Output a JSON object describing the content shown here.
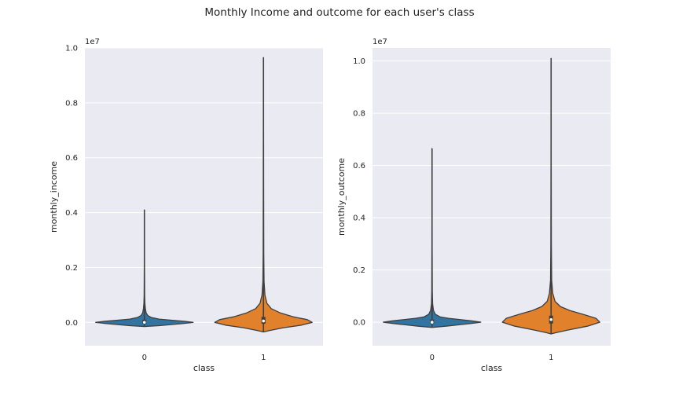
{
  "figure": {
    "suptitle": "Monthly Income and outcome for each user's class"
  },
  "chart_data": [
    {
      "type": "violin",
      "xlabel": "class",
      "ylabel": "monthly_income",
      "offset_label": "1e7",
      "categories": [
        "0",
        "1"
      ],
      "ylim": [
        -0.085,
        1.0
      ],
      "yticks": [
        0.0,
        0.2,
        0.4,
        0.6,
        0.8,
        1.0
      ],
      "ytick_labels": [
        "0.0",
        "0.2",
        "0.4",
        "0.6",
        "0.8",
        "1.0"
      ],
      "grid": true,
      "series": [
        {
          "category": "0",
          "color": "#3274a1",
          "min": -0.015,
          "max": 0.41,
          "q1": -0.005,
          "median": 0.0,
          "q3": 0.01,
          "profile": [
            [
              -0.015,
              0.0
            ],
            [
              -0.012,
              0.3
            ],
            [
              -0.008,
              0.55
            ],
            [
              -0.004,
              0.8
            ],
            [
              0.0,
              1.0
            ],
            [
              0.004,
              0.82
            ],
            [
              0.008,
              0.55
            ],
            [
              0.012,
              0.3
            ],
            [
              0.018,
              0.14
            ],
            [
              0.025,
              0.07
            ],
            [
              0.035,
              0.035
            ],
            [
              0.05,
              0.02
            ],
            [
              0.07,
              0.01
            ],
            [
              0.1,
              0.005
            ],
            [
              0.2,
              0.002
            ],
            [
              0.41,
              0.0
            ]
          ]
        },
        {
          "category": "1",
          "color": "#e1812c",
          "min": -0.035,
          "max": 0.965,
          "q1": -0.005,
          "median": 0.005,
          "q3": 0.02,
          "profile": [
            [
              -0.035,
              0.0
            ],
            [
              -0.03,
              0.12
            ],
            [
              -0.02,
              0.4
            ],
            [
              -0.01,
              0.78
            ],
            [
              0.0,
              1.0
            ],
            [
              0.01,
              0.9
            ],
            [
              0.02,
              0.62
            ],
            [
              0.035,
              0.34
            ],
            [
              0.05,
              0.16
            ],
            [
              0.07,
              0.07
            ],
            [
              0.1,
              0.03
            ],
            [
              0.15,
              0.012
            ],
            [
              0.25,
              0.006
            ],
            [
              0.5,
              0.003
            ],
            [
              0.965,
              0.0
            ]
          ]
        }
      ]
    },
    {
      "type": "violin",
      "xlabel": "class",
      "ylabel": "monthly_outcome",
      "offset_label": "1e7",
      "categories": [
        "0",
        "1"
      ],
      "ylim": [
        -0.09,
        1.05
      ],
      "yticks": [
        0.0,
        0.2,
        0.4,
        0.6,
        0.8,
        1.0
      ],
      "ytick_labels": [
        "0.0",
        "0.2",
        "0.4",
        "0.6",
        "0.8",
        "1.0"
      ],
      "grid": true,
      "series": [
        {
          "category": "0",
          "color": "#3274a1",
          "min": -0.02,
          "max": 0.665,
          "q1": -0.005,
          "median": 0.0,
          "q3": 0.01,
          "profile": [
            [
              -0.02,
              0.0
            ],
            [
              -0.015,
              0.3
            ],
            [
              -0.01,
              0.55
            ],
            [
              -0.005,
              0.8
            ],
            [
              0.0,
              1.0
            ],
            [
              0.005,
              0.82
            ],
            [
              0.01,
              0.58
            ],
            [
              0.015,
              0.34
            ],
            [
              0.02,
              0.17
            ],
            [
              0.03,
              0.07
            ],
            [
              0.045,
              0.03
            ],
            [
              0.07,
              0.012
            ],
            [
              0.12,
              0.005
            ],
            [
              0.3,
              0.002
            ],
            [
              0.665,
              0.0
            ]
          ]
        },
        {
          "category": "1",
          "color": "#e1812c",
          "min": -0.045,
          "max": 1.01,
          "q1": -0.005,
          "median": 0.01,
          "q3": 0.025,
          "profile": [
            [
              -0.045,
              0.0
            ],
            [
              -0.04,
              0.1
            ],
            [
              -0.03,
              0.35
            ],
            [
              -0.015,
              0.75
            ],
            [
              0.0,
              1.0
            ],
            [
              0.015,
              0.92
            ],
            [
              0.03,
              0.66
            ],
            [
              0.045,
              0.38
            ],
            [
              0.06,
              0.19
            ],
            [
              0.08,
              0.08
            ],
            [
              0.11,
              0.035
            ],
            [
              0.16,
              0.012
            ],
            [
              0.3,
              0.005
            ],
            [
              0.6,
              0.002
            ],
            [
              1.01,
              0.0
            ]
          ]
        }
      ]
    }
  ]
}
